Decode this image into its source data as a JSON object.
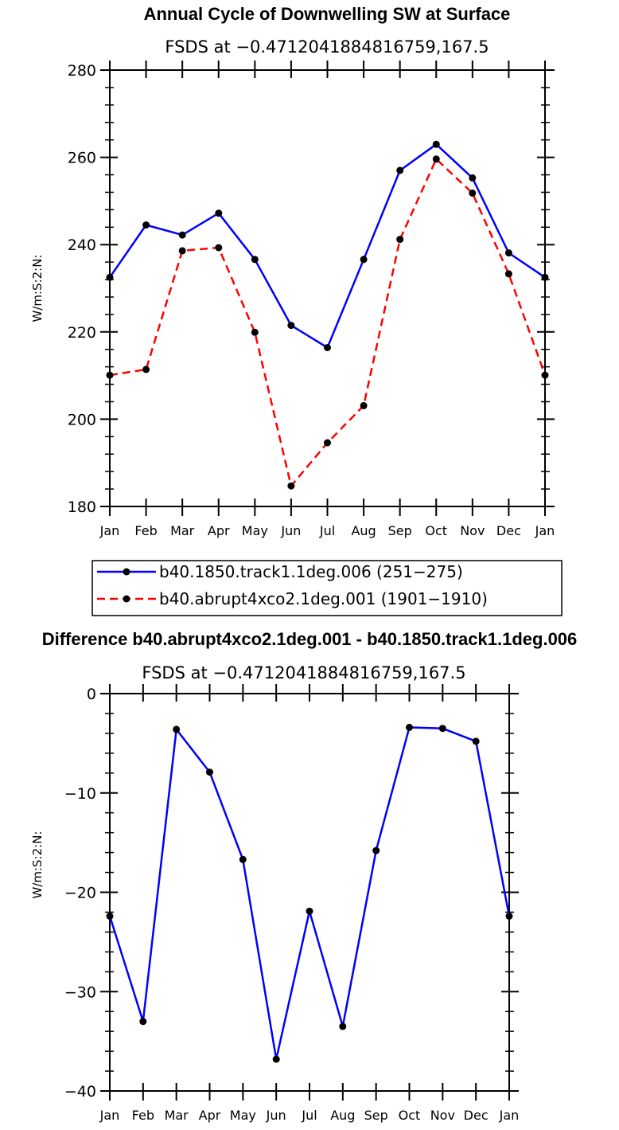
{
  "chart_data": [
    {
      "type": "line",
      "title": "Annual Cycle of Downwelling SW at Surface",
      "subtitle": "FSDS at −0.4712041884816759,167.5",
      "ylabel": "W/m:S:2:N:",
      "ylim": [
        180,
        280
      ],
      "yticks": [
        "180",
        "200",
        "220",
        "240",
        "260",
        "280"
      ],
      "categories": [
        "Jan",
        "Feb",
        "Mar",
        "Apr",
        "May",
        "Jun",
        "Jul",
        "Aug",
        "Sep",
        "Oct",
        "Nov",
        "Dec",
        "Jan"
      ],
      "series": [
        {
          "name": "b40.1850.track1.1deg.006 (251−275)",
          "color": "#0000ff",
          "dash": "solid",
          "values": [
            232.5,
            244.5,
            242.2,
            247.2,
            236.6,
            221.5,
            216.4,
            236.6,
            257.0,
            263.0,
            255.3,
            238.1,
            232.5
          ]
        },
        {
          "name": "b40.abrupt4xco2.1deg.001 (1901−1910)",
          "color": "#ff0000",
          "dash": "dashed",
          "values": [
            210.1,
            211.4,
            238.6,
            239.3,
            219.9,
            184.7,
            194.6,
            203.1,
            241.2,
            259.6,
            251.8,
            233.3,
            210.1
          ]
        }
      ]
    },
    {
      "type": "line",
      "title": "Difference b40.abrupt4xco2.1deg.001 - b40.1850.track1.1deg.006",
      "subtitle": "FSDS at −0.4712041884816759,167.5",
      "ylabel": "W/m:S:2:N:",
      "ylim": [
        -40,
        0
      ],
      "yticks": [
        "−40",
        "−30",
        "−20",
        "−10",
        "0"
      ],
      "categories": [
        "Jan",
        "Feb",
        "Mar",
        "Apr",
        "May",
        "Jun",
        "Jul",
        "Aug",
        "Sep",
        "Oct",
        "Nov",
        "Dec",
        "Jan"
      ],
      "series": [
        {
          "color": "#0000ff",
          "dash": "solid",
          "values": [
            -22.4,
            -33.0,
            -3.6,
            -7.9,
            -16.7,
            -36.8,
            -21.9,
            -33.5,
            -15.8,
            -3.4,
            -3.5,
            -4.8,
            -22.4
          ]
        }
      ]
    }
  ]
}
